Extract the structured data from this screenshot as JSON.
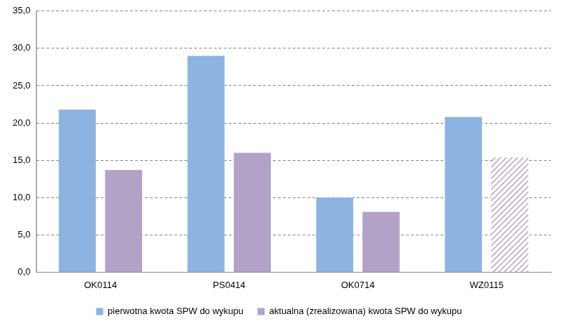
{
  "chart_data": {
    "type": "bar",
    "categories": [
      "OK0114",
      "PS0414",
      "OK0714",
      "WZ0115"
    ],
    "series": [
      {
        "name": "pierwotna kwota SPW do wykupu",
        "color": "#8db3e2",
        "values": [
          21.8,
          29.0,
          10.0,
          20.8
        ]
      },
      {
        "name": "aktualna (zrealizowana) kwota SPW do wykupu",
        "color": "#b3a2c7",
        "values": [
          13.7,
          16.0,
          8.1,
          15.4
        ]
      }
    ],
    "ylim": [
      0,
      35
    ],
    "yticks": [
      {
        "value": 0,
        "label": "0,0"
      },
      {
        "value": 5,
        "label": "5,0"
      },
      {
        "value": 10,
        "label": "10,0"
      },
      {
        "value": 15,
        "label": "15,0"
      },
      {
        "value": 20,
        "label": "20,0"
      },
      {
        "value": 25,
        "label": "25,0"
      },
      {
        "value": 30,
        "label": "30,0"
      },
      {
        "value": 35,
        "label": "35,0"
      }
    ],
    "grid": true,
    "legend": "bottom"
  }
}
